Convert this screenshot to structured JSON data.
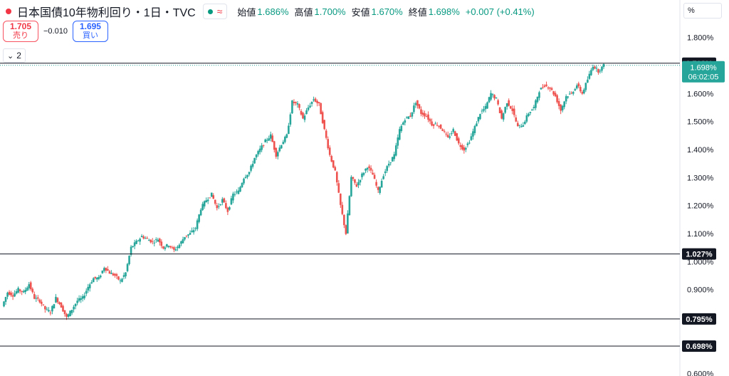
{
  "legend": {
    "title": "日本国債10年物利回り・1日・TVC",
    "indicator_icon": "wave-icon",
    "open_label": "始値",
    "open_value": "1.686%",
    "high_label": "高値",
    "high_value": "1.700%",
    "low_label": "安値",
    "low_value": "1.670%",
    "close_label": "終値",
    "close_value": "1.698%",
    "change": "+0.007 (+0.41%)"
  },
  "trade": {
    "sell_price": "1.705",
    "sell_label": "売り",
    "spread": "−0.010",
    "buy_price": "1.695",
    "buy_label": "買い"
  },
  "indicator_toggle": {
    "count": "2"
  },
  "axis": {
    "unit": "%",
    "ylim": [
      0.6,
      1.85
    ],
    "ticks": [
      "1.800%",
      "1.700%",
      "1.600%",
      "1.500%",
      "1.400%",
      "1.300%",
      "1.200%",
      "1.100%",
      "1.000%",
      "0.900%",
      "0.800%",
      "0.700%",
      "0.600%"
    ]
  },
  "colors": {
    "up": "#26a69a",
    "down": "#ef5350",
    "accent": "#089981",
    "line": "#131722"
  },
  "chart_data": {
    "type": "candlestick",
    "title": "日本国債10年物利回り・1日・TVC",
    "ylabel": "%",
    "ylim": [
      0.6,
      1.85
    ],
    "grid": false,
    "current_price": {
      "value": 1.698,
      "label": "1.698%",
      "countdown": "06:02:05"
    },
    "horizontal_lines": [
      {
        "value": 1.708,
        "label": "1.708%",
        "style": "dotted-top"
      },
      {
        "value": 1.027,
        "label": "1.027%"
      },
      {
        "value": 0.795,
        "label": "0.795%"
      },
      {
        "value": 0.698,
        "label": "0.698%"
      }
    ],
    "series_path": [
      0.84,
      0.89,
      0.88,
      0.9,
      0.89,
      0.92,
      0.87,
      0.86,
      0.83,
      0.82,
      0.87,
      0.84,
      0.8,
      0.83,
      0.86,
      0.87,
      0.91,
      0.94,
      0.94,
      0.98,
      0.96,
      0.95,
      0.93,
      0.96,
      1.05,
      1.07,
      1.09,
      1.08,
      1.07,
      1.08,
      1.05,
      1.06,
      1.04,
      1.06,
      1.09,
      1.1,
      1.12,
      1.19,
      1.22,
      1.24,
      1.19,
      1.22,
      1.18,
      1.24,
      1.25,
      1.3,
      1.32,
      1.37,
      1.4,
      1.43,
      1.45,
      1.38,
      1.42,
      1.45,
      1.57,
      1.56,
      1.51,
      1.55,
      1.58,
      1.56,
      1.47,
      1.38,
      1.32,
      1.2,
      1.1,
      1.3,
      1.27,
      1.31,
      1.34,
      1.31,
      1.25,
      1.31,
      1.35,
      1.38,
      1.47,
      1.51,
      1.52,
      1.57,
      1.53,
      1.52,
      1.49,
      1.49,
      1.47,
      1.44,
      1.47,
      1.42,
      1.4,
      1.43,
      1.48,
      1.53,
      1.55,
      1.6,
      1.58,
      1.51,
      1.57,
      1.54,
      1.48,
      1.49,
      1.53,
      1.55,
      1.61,
      1.63,
      1.62,
      1.59,
      1.54,
      1.59,
      1.6,
      1.63,
      1.6,
      1.65,
      1.7,
      1.68,
      1.7
    ]
  }
}
